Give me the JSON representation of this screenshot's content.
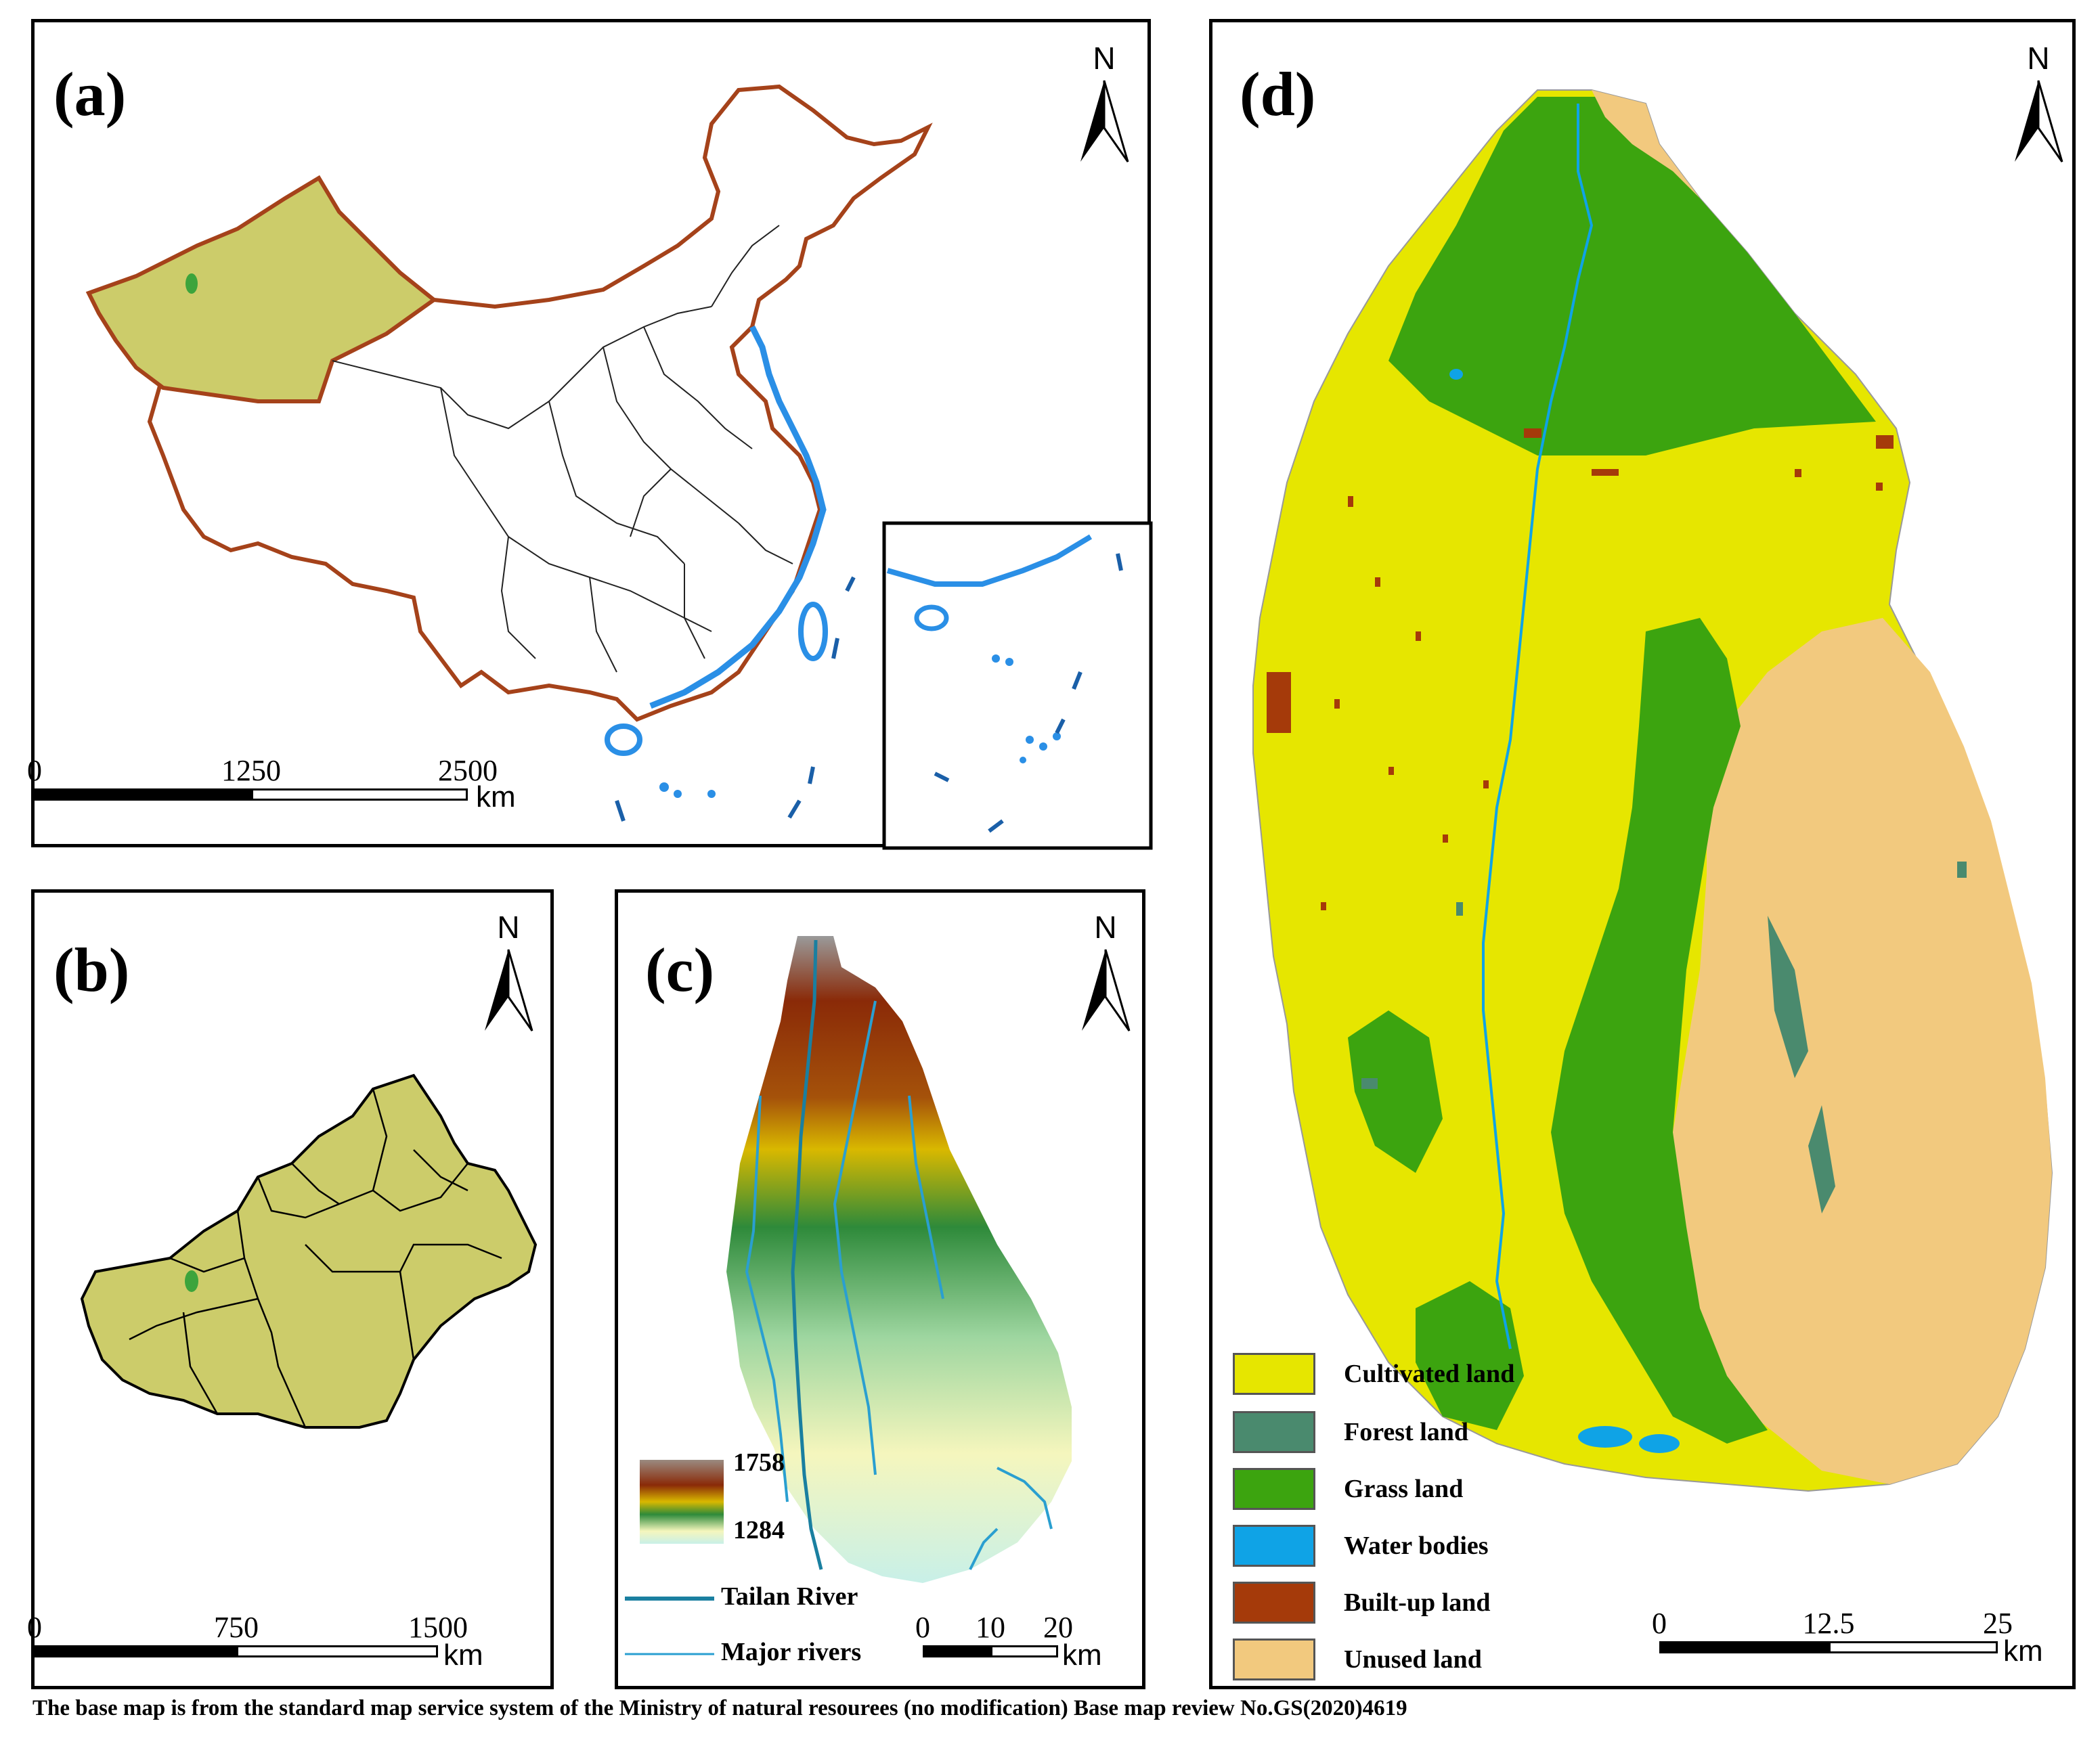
{
  "panels": {
    "a": {
      "label": "(a)",
      "north": "N",
      "scale": {
        "ticks": [
          "0",
          "1250",
          "2500"
        ],
        "unit": "km"
      }
    },
    "b": {
      "label": "(b)",
      "north": "N",
      "scale": {
        "ticks": [
          "0",
          "750",
          "1500"
        ],
        "unit": "km"
      }
    },
    "c": {
      "label": "(c)",
      "north": "N",
      "elevation": {
        "max": "1758",
        "min": "1284"
      },
      "lines": [
        {
          "label": "Tailan River",
          "color": "#1a7fa0"
        },
        {
          "label": "Major rivers",
          "color": "#2a9fd0"
        }
      ],
      "scale": {
        "ticks": [
          "0",
          "10",
          "20"
        ],
        "unit": "km"
      }
    },
    "d": {
      "label": "(d)",
      "north": "N",
      "legend": [
        {
          "label": "Cultivated land",
          "color": "#e6e600"
        },
        {
          "label": "Forest land",
          "color": "#4a8a6e"
        },
        {
          "label": "Grass land",
          "color": "#3ca40f"
        },
        {
          "label": "Water bodies",
          "color": "#0fa3e6"
        },
        {
          "label": "Built-up land",
          "color": "#a53a0a"
        },
        {
          "label": "Unused land",
          "color": "#f2c97e"
        }
      ],
      "scale": {
        "ticks": [
          "0",
          "12.5",
          "25"
        ],
        "unit": "km"
      }
    }
  },
  "colors": {
    "xinjiang": "#cccc6a",
    "border": "#a5421a",
    "coast": "#2a8fe6",
    "study_area": "#3ca43c"
  },
  "footnote": "The base map is from the standard map service system of the Ministry of natural resourees (no modification) Base map review No.GS(2020)4619"
}
